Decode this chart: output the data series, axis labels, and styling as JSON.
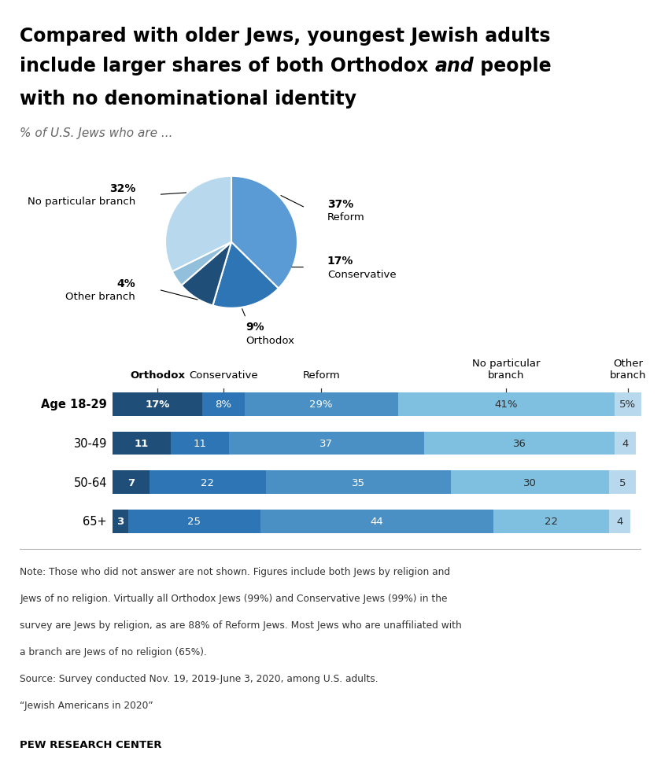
{
  "title_line1": "Compared with older Jews, youngest Jewish adults",
  "title_line2_pre": "include larger shares of both Orthodox ",
  "title_line2_italic": "and",
  "title_line2_post": " people",
  "title_line3": "with no denominational identity",
  "subtitle": "% of U.S. Jews who are ...",
  "pie_values": [
    37,
    17,
    9,
    4,
    32
  ],
  "pie_labels": [
    "Reform",
    "Conservative",
    "Orthodox",
    "Other branch",
    "No particular branch"
  ],
  "pie_colors": [
    "#5b9bd5",
    "#2e75b6",
    "#1f4e79",
    "#92c0dc",
    "#b8d9ed"
  ],
  "pie_pcts": [
    "37%",
    "17%",
    "9%",
    "4%",
    "32%"
  ],
  "bar_categories": [
    "Age 18-29",
    "30-49",
    "50-64",
    "65+"
  ],
  "bar_col_labels": [
    "Orthodox",
    "Conservative",
    "Reform",
    "No particular\nbranch",
    "Other\nbranch"
  ],
  "bar_col_bold": [
    true,
    false,
    false,
    false,
    false
  ],
  "bar_data": [
    [
      17,
      8,
      29,
      41,
      5
    ],
    [
      11,
      11,
      37,
      36,
      4
    ],
    [
      7,
      22,
      35,
      30,
      5
    ],
    [
      3,
      25,
      44,
      22,
      4
    ]
  ],
  "bar_colors": [
    "#1f4e79",
    "#2e75b6",
    "#4a90c4",
    "#7fbfdf",
    "#b8d9ed"
  ],
  "bar_first_row_pct": true,
  "note_line1": "Note: Those who did not answer are not shown. Figures include both Jews by religion and",
  "note_line2": "Jews of no religion. Virtually all Orthodox Jews (99%) and Conservative Jews (99%) in the",
  "note_line3": "survey are Jews by religion, as are 88% of Reform Jews. Most Jews who are unaffiliated with",
  "note_line4": "a branch are Jews of no religion (65%).",
  "note_line5": "Source: Survey conducted Nov. 19, 2019-June 3, 2020, among U.S. adults.",
  "note_line6": "“Jewish Americans in 2020”",
  "source_label": "PEW RESEARCH CENTER",
  "bg_color": "#ffffff"
}
